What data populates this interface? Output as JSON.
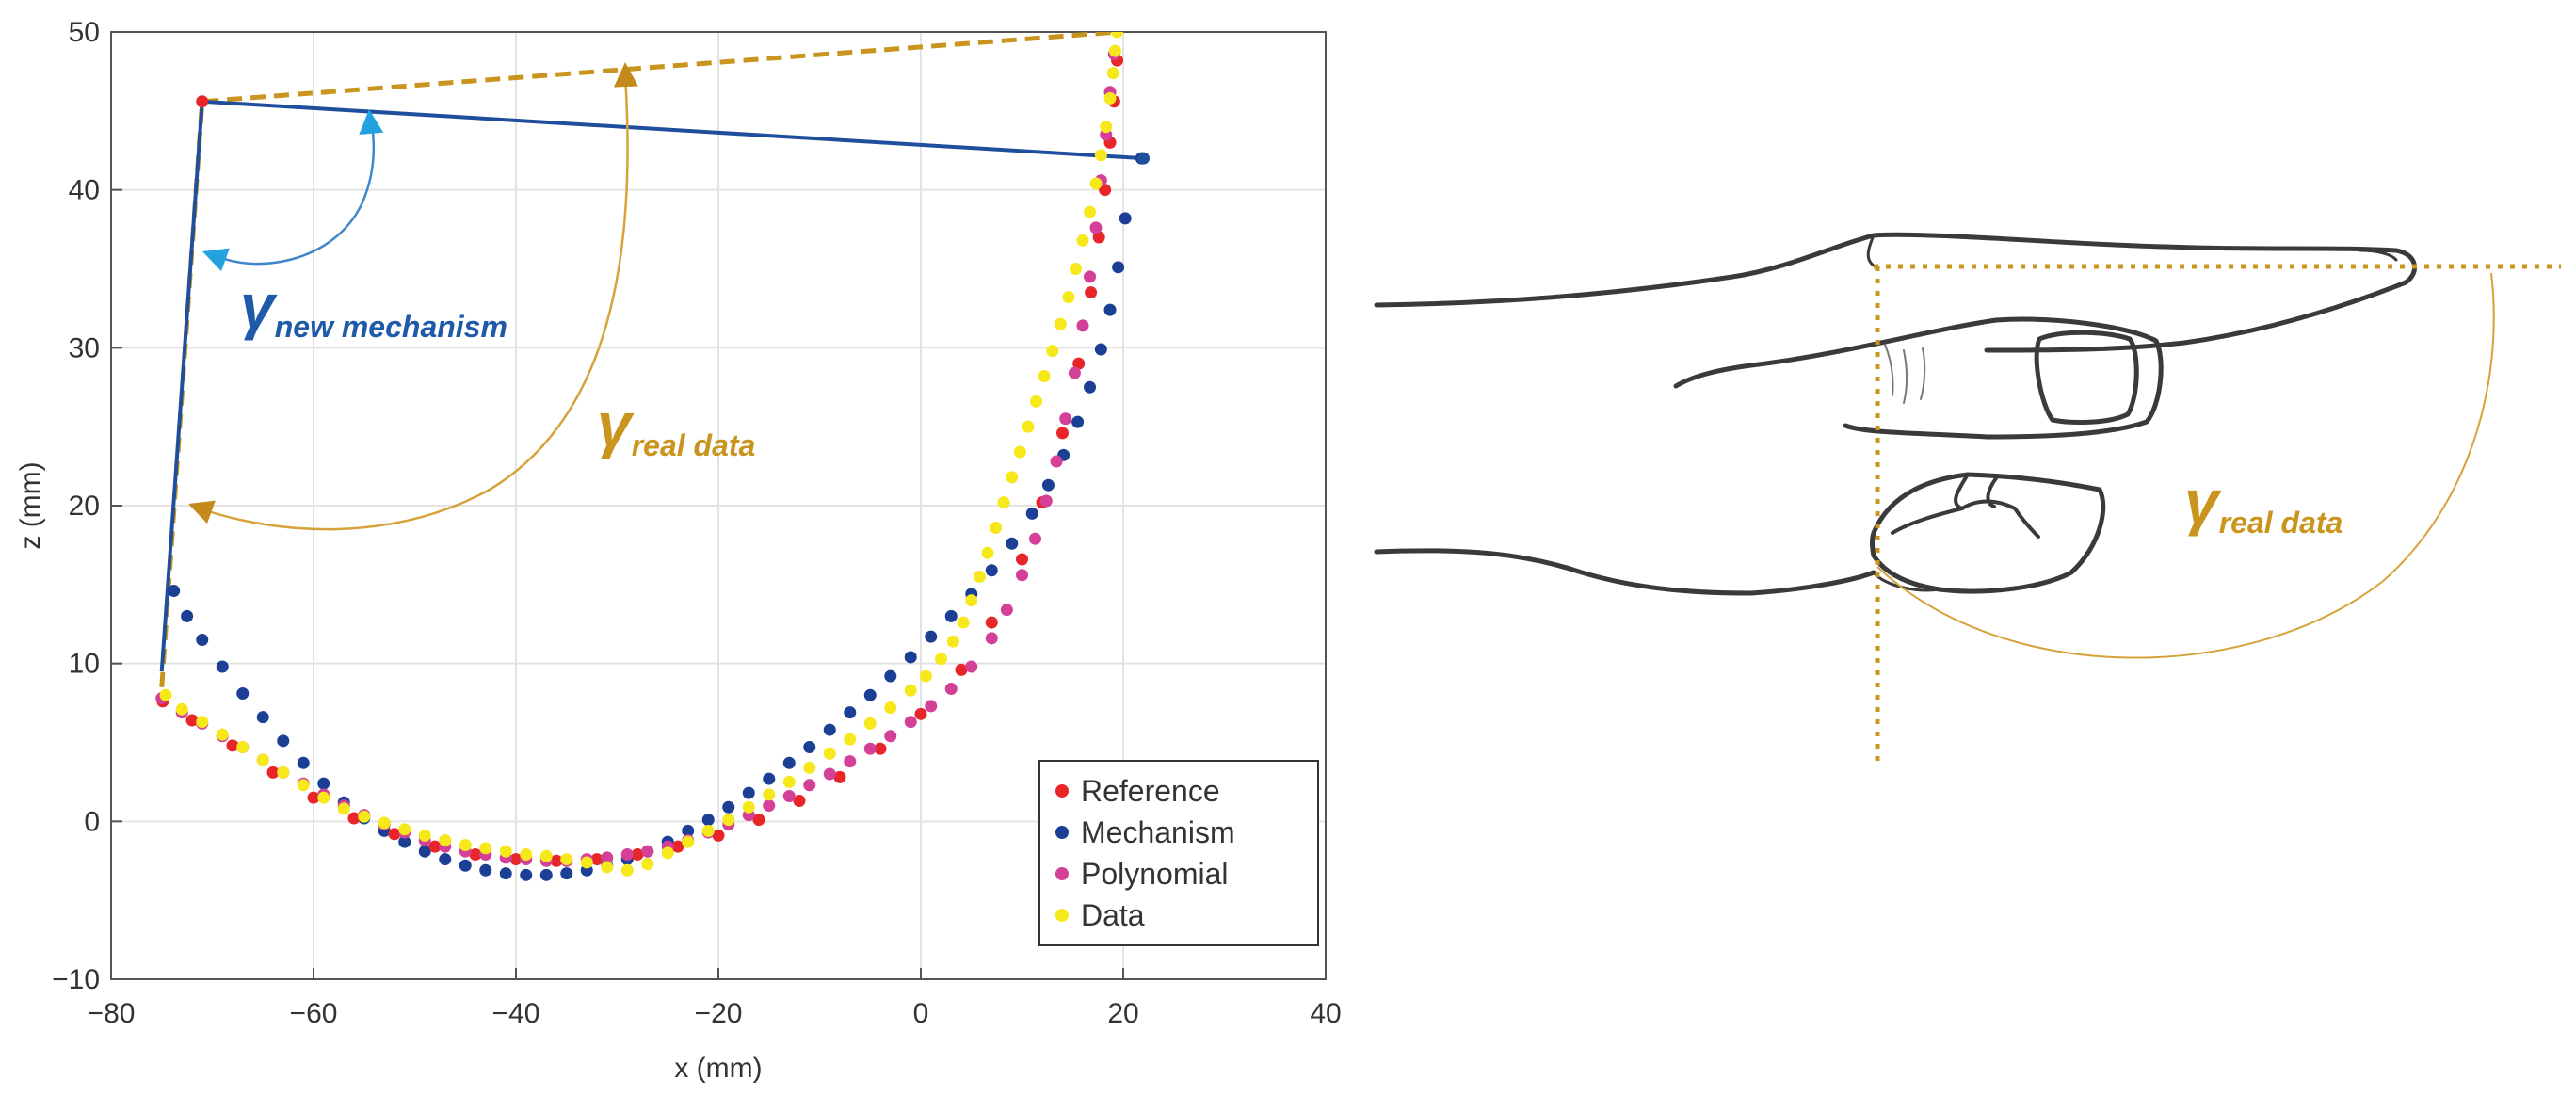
{
  "chart_data": {
    "type": "scatter",
    "xlabel": "x (mm)",
    "ylabel": "z (mm)",
    "xlim": [
      -80,
      40
    ],
    "ylim": [
      -10,
      50
    ],
    "xticks": [
      -80,
      -60,
      -40,
      -20,
      0,
      20,
      40
    ],
    "yticks": [
      -10,
      0,
      10,
      20,
      30,
      40,
      50
    ],
    "xtick_labels": [
      "−80",
      "−60",
      "−40",
      "−20",
      "0",
      "20",
      "40"
    ],
    "ytick_labels": [
      "−10",
      "0",
      "10",
      "20",
      "30",
      "40",
      "50"
    ],
    "grid": true,
    "legend_position": "bottom-right",
    "series": [
      {
        "name": "Reference",
        "color": "#e8262a",
        "points": [
          [
            -74.9,
            7.6
          ],
          [
            -72,
            6.4
          ],
          [
            -68,
            4.8
          ],
          [
            -64,
            3.1
          ],
          [
            -60,
            1.5
          ],
          [
            -56,
            0.2
          ],
          [
            -52,
            -0.8
          ],
          [
            -48,
            -1.6
          ],
          [
            -44,
            -2.1
          ],
          [
            -40,
            -2.4
          ],
          [
            -36,
            -2.5
          ],
          [
            -32,
            -2.4
          ],
          [
            -28,
            -2.1
          ],
          [
            -24,
            -1.6
          ],
          [
            -20,
            -0.9
          ],
          [
            -16,
            0.1
          ],
          [
            -12,
            1.3
          ],
          [
            -8,
            2.8
          ],
          [
            -4,
            4.6
          ],
          [
            0,
            6.8
          ],
          [
            4,
            9.6
          ],
          [
            7,
            12.6
          ],
          [
            10,
            16.6
          ],
          [
            12,
            20.2
          ],
          [
            14,
            24.6
          ],
          [
            15.6,
            29
          ],
          [
            16.8,
            33.5
          ],
          [
            17.6,
            37
          ],
          [
            18.2,
            40
          ],
          [
            18.7,
            43
          ],
          [
            19.1,
            45.6
          ],
          [
            19.4,
            48.2
          ]
        ]
      },
      {
        "name": "Mechanism",
        "color": "#1b3f95",
        "points": [
          [
            -73.8,
            14.6
          ],
          [
            -72.5,
            13
          ],
          [
            -71,
            11.5
          ],
          [
            -69,
            9.8
          ],
          [
            -67,
            8.1
          ],
          [
            -65,
            6.6
          ],
          [
            -63,
            5.1
          ],
          [
            -61,
            3.7
          ],
          [
            -59,
            2.4
          ],
          [
            -57,
            1.2
          ],
          [
            -55,
            0.2
          ],
          [
            -53,
            -0.6
          ],
          [
            -51,
            -1.3
          ],
          [
            -49,
            -1.9
          ],
          [
            -47,
            -2.4
          ],
          [
            -45,
            -2.8
          ],
          [
            -43,
            -3.1
          ],
          [
            -41,
            -3.3
          ],
          [
            -39,
            -3.4
          ],
          [
            -37,
            -3.4
          ],
          [
            -35,
            -3.3
          ],
          [
            -33,
            -3.1
          ],
          [
            -31,
            -2.8
          ],
          [
            -29,
            -2.4
          ],
          [
            -27,
            -1.9
          ],
          [
            -25,
            -1.3
          ],
          [
            -23,
            -0.6
          ],
          [
            -21,
            0.1
          ],
          [
            -19,
            0.9
          ],
          [
            -17,
            1.8
          ],
          [
            -15,
            2.7
          ],
          [
            -13,
            3.7
          ],
          [
            -11,
            4.7
          ],
          [
            -9,
            5.8
          ],
          [
            -7,
            6.9
          ],
          [
            -5,
            8
          ],
          [
            -3,
            9.2
          ],
          [
            -1,
            10.4
          ],
          [
            1,
            11.7
          ],
          [
            3,
            13
          ],
          [
            5,
            14.4
          ],
          [
            7,
            15.9
          ],
          [
            9,
            17.6
          ],
          [
            11,
            19.5
          ],
          [
            12.6,
            21.3
          ],
          [
            14.1,
            23.2
          ],
          [
            15.5,
            25.3
          ],
          [
            16.7,
            27.5
          ],
          [
            17.8,
            29.9
          ],
          [
            18.7,
            32.4
          ],
          [
            19.5,
            35.1
          ],
          [
            20.2,
            38.2
          ],
          [
            21.8,
            42
          ]
        ]
      },
      {
        "name": "Polynomial",
        "color": "#d43f98",
        "points": [
          [
            -75,
            7.8
          ],
          [
            -73,
            6.9
          ],
          [
            -71,
            6.2
          ],
          [
            -69,
            5.4
          ],
          [
            -67,
            4.7
          ],
          [
            -65,
            3.9
          ],
          [
            -63,
            3.1
          ],
          [
            -61,
            2.4
          ],
          [
            -59,
            1.7
          ],
          [
            -57,
            1
          ],
          [
            -55,
            0.4
          ],
          [
            -53,
            -0.2
          ],
          [
            -51,
            -0.7
          ],
          [
            -49,
            -1.2
          ],
          [
            -47,
            -1.6
          ],
          [
            -45,
            -1.9
          ],
          [
            -43,
            -2.1
          ],
          [
            -41,
            -2.3
          ],
          [
            -39,
            -2.4
          ],
          [
            -37,
            -2.5
          ],
          [
            -35,
            -2.5
          ],
          [
            -33,
            -2.4
          ],
          [
            -31,
            -2.3
          ],
          [
            -29,
            -2.1
          ],
          [
            -27,
            -1.9
          ],
          [
            -25,
            -1.6
          ],
          [
            -23,
            -1.2
          ],
          [
            -21,
            -0.7
          ],
          [
            -19,
            -0.2
          ],
          [
            -17,
            0.4
          ],
          [
            -15,
            1
          ],
          [
            -13,
            1.6
          ],
          [
            -11,
            2.3
          ],
          [
            -9,
            3
          ],
          [
            -7,
            3.8
          ],
          [
            -5,
            4.6
          ],
          [
            -3,
            5.4
          ],
          [
            -1,
            6.3
          ],
          [
            1,
            7.3
          ],
          [
            3,
            8.4
          ],
          [
            5,
            9.8
          ],
          [
            7,
            11.6
          ],
          [
            8.5,
            13.4
          ],
          [
            10,
            15.6
          ],
          [
            11.3,
            17.9
          ],
          [
            12.4,
            20.3
          ],
          [
            13.4,
            22.8
          ],
          [
            14.3,
            25.5
          ],
          [
            15.2,
            28.4
          ],
          [
            16,
            31.4
          ],
          [
            16.7,
            34.5
          ],
          [
            17.3,
            37.6
          ],
          [
            17.8,
            40.6
          ],
          [
            18.3,
            43.5
          ],
          [
            18.7,
            46.2
          ],
          [
            19.1,
            48.6
          ]
        ]
      },
      {
        "name": "Data",
        "color": "#f7e81b",
        "points": [
          [
            -74.6,
            8
          ],
          [
            -73,
            7.1
          ],
          [
            -71,
            6.3
          ],
          [
            -69,
            5.5
          ],
          [
            -67,
            4.7
          ],
          [
            -65,
            3.9
          ],
          [
            -63,
            3.1
          ],
          [
            -61,
            2.3
          ],
          [
            -59,
            1.5
          ],
          [
            -57,
            0.8
          ],
          [
            -55,
            0.3
          ],
          [
            -53,
            -0.1
          ],
          [
            -51,
            -0.5
          ],
          [
            -49,
            -0.9
          ],
          [
            -47,
            -1.2
          ],
          [
            -45,
            -1.5
          ],
          [
            -43,
            -1.7
          ],
          [
            -41,
            -1.9
          ],
          [
            -39,
            -2.1
          ],
          [
            -37,
            -2.2
          ],
          [
            -35,
            -2.4
          ],
          [
            -33,
            -2.6
          ],
          [
            -31,
            -2.9
          ],
          [
            -29,
            -3.1
          ],
          [
            -27,
            -2.7
          ],
          [
            -25,
            -2
          ],
          [
            -23,
            -1.3
          ],
          [
            -21,
            -0.6
          ],
          [
            -19,
            0.1
          ],
          [
            -17,
            0.9
          ],
          [
            -15,
            1.7
          ],
          [
            -13,
            2.5
          ],
          [
            -11,
            3.4
          ],
          [
            -9,
            4.3
          ],
          [
            -7,
            5.2
          ],
          [
            -5,
            6.2
          ],
          [
            -3,
            7.2
          ],
          [
            -1,
            8.3
          ],
          [
            0.5,
            9.2
          ],
          [
            2,
            10.3
          ],
          [
            3.2,
            11.4
          ],
          [
            4.2,
            12.6
          ],
          [
            5,
            14
          ],
          [
            5.8,
            15.5
          ],
          [
            6.6,
            17
          ],
          [
            7.4,
            18.6
          ],
          [
            8.2,
            20.2
          ],
          [
            9,
            21.8
          ],
          [
            9.8,
            23.4
          ],
          [
            10.6,
            25
          ],
          [
            11.4,
            26.6
          ],
          [
            12.2,
            28.2
          ],
          [
            13,
            29.8
          ],
          [
            13.8,
            31.5
          ],
          [
            14.6,
            33.2
          ],
          [
            15.3,
            35
          ],
          [
            16,
            36.8
          ],
          [
            16.7,
            38.6
          ],
          [
            17.3,
            40.4
          ],
          [
            17.8,
            42.2
          ],
          [
            18.3,
            44
          ],
          [
            18.7,
            45.8
          ],
          [
            19,
            47.4
          ],
          [
            19.2,
            48.8
          ],
          [
            19.4,
            50
          ]
        ]
      }
    ],
    "annotations": {
      "mechanism_line": [
        [
          -75,
          9.5
        ],
        [
          -71,
          45.6
        ],
        [
          22,
          42
        ]
      ],
      "real_data_line": [
        [
          -75,
          8.5
        ],
        [
          -71,
          45.6
        ],
        [
          19.5,
          50
        ]
      ],
      "gamma_new_label_symbol": "γ",
      "gamma_new_label_subscript": "new mechanism",
      "gamma_real_label_symbol": "γ",
      "gamma_real_label_subscript": "real data"
    },
    "colors": {
      "mechanism_line": "#1f4e9c",
      "real_data_line": "#c9951f",
      "arc_new": "#3f87c9",
      "arrow_new": "#22a3e0",
      "arc_real": "#d6a23a",
      "arrow_real": "#c48a1b",
      "label_new": "#1e5aa8",
      "label_real": "#c9951f",
      "grid": "#e3e3e3",
      "axis": "#333333"
    }
  },
  "illustration": {
    "gamma_symbol": "γ",
    "gamma_subscript": "real data",
    "guide_color": "#c9951f",
    "outline_color": "#3a3a3a"
  }
}
